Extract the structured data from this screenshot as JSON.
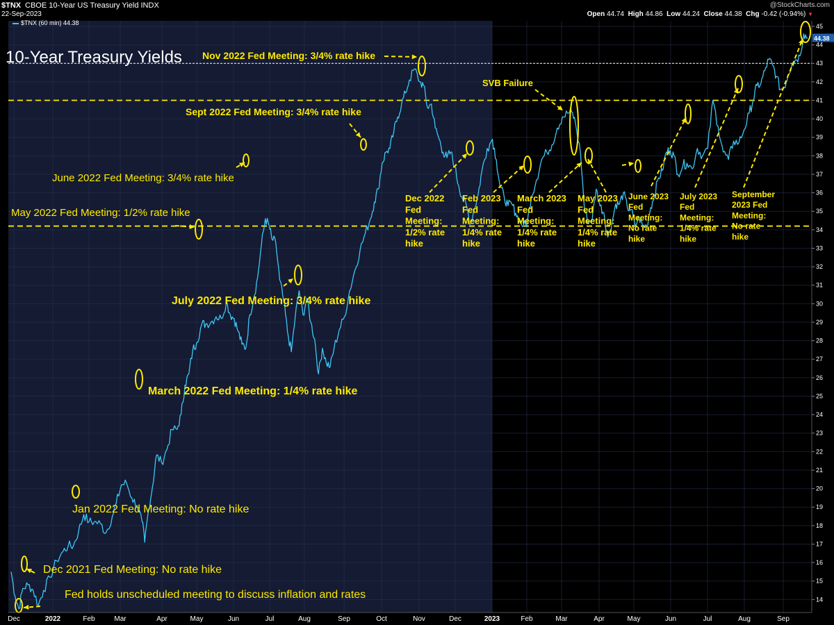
{
  "header": {
    "symbol": "$TNX",
    "description": "CBOE 10-Year US Treasury Yield INDX",
    "date": "22-Sep-2023",
    "legend": "$TNX (60 min) 44.38",
    "watermark": "@StockCharts.com",
    "open_label": "Open",
    "open": "44.74",
    "high_label": "High",
    "high": "44.86",
    "low_label": "Low",
    "low": "44.24",
    "close_label": "Close",
    "close": "44.38",
    "chg_label": "Chg",
    "chg": "-0.42 (-0.94%)",
    "chg_arrow": "▼"
  },
  "chart_data": {
    "type": "line",
    "title": "10-Year Treasury Yields",
    "symbol": "$TNX",
    "interval": "60 min",
    "ylim": [
      13.3,
      45.3
    ],
    "y_ticks": [
      14,
      15,
      16,
      17,
      18,
      19,
      20,
      21,
      22,
      23,
      24,
      25,
      26,
      27,
      28,
      29,
      30,
      31,
      32,
      33,
      34,
      35,
      36,
      37,
      38,
      39,
      40,
      41,
      42,
      43,
      44,
      45
    ],
    "x_ticks": [
      "Dec",
      "2022",
      "Feb",
      "Mar",
      "Apr",
      "May",
      "Jun",
      "Jul",
      "Aug",
      "Sep",
      "Oct",
      "Nov",
      "Dec",
      "2023",
      "Feb",
      "Mar",
      "Apr",
      "May",
      "Jun",
      "Jul",
      "Aug",
      "Sep"
    ],
    "last_value": "44.38",
    "reference_lines": [
      43,
      41,
      34.2
    ],
    "series": [
      {
        "values": [
          [
            0,
            15.5
          ],
          [
            3,
            14.2
          ],
          [
            6,
            13.5
          ],
          [
            9,
            14.6
          ],
          [
            13,
            14.8
          ],
          [
            17,
            14.5
          ],
          [
            21,
            13.7
          ],
          [
            25,
            14.5
          ],
          [
            30,
            15.2
          ],
          [
            35,
            16.1
          ],
          [
            40,
            16.6
          ],
          [
            44,
            16.9
          ],
          [
            48,
            16.9
          ],
          [
            52,
            17.7
          ],
          [
            56,
            18.6
          ],
          [
            60,
            18.2
          ],
          [
            64,
            18.2
          ],
          [
            69,
            18.1
          ],
          [
            73,
            17.6
          ],
          [
            78,
            18.5
          ],
          [
            81,
            19.2
          ],
          [
            85,
            20.2
          ],
          [
            89,
            20.3
          ],
          [
            93,
            19.5
          ],
          [
            97,
            19.1
          ],
          [
            101,
            18.2
          ],
          [
            103,
            17.1
          ],
          [
            106,
            18.9
          ],
          [
            109,
            20.1
          ],
          [
            112,
            21.8
          ],
          [
            116,
            21.4
          ],
          [
            120,
            22.1
          ],
          [
            124,
            23.2
          ],
          [
            128,
            23.2
          ],
          [
            131,
            24.0
          ],
          [
            134,
            25.6
          ],
          [
            137,
            26.2
          ],
          [
            140,
            27.5
          ],
          [
            143,
            27.9
          ],
          [
            147,
            28.9
          ],
          [
            150,
            28.9
          ],
          [
            154,
            29.0
          ],
          [
            158,
            29.3
          ],
          [
            162,
            29.2
          ],
          [
            166,
            30.1
          ],
          [
            169,
            29.4
          ],
          [
            172,
            29.2
          ],
          [
            175,
            28.5
          ],
          [
            178,
            27.8
          ],
          [
            181,
            27.6
          ],
          [
            184,
            29.4
          ],
          [
            187,
            30.3
          ],
          [
            190,
            31.4
          ],
          [
            193,
            33.2
          ],
          [
            196,
            34.6
          ],
          [
            199,
            34.2
          ],
          [
            201,
            33.5
          ],
          [
            204,
            33.3
          ],
          [
            207,
            31.3
          ],
          [
            210,
            30.2
          ],
          [
            213,
            28.5
          ],
          [
            216,
            27.4
          ],
          [
            219,
            29.3
          ],
          [
            222,
            30.7
          ],
          [
            225,
            29.4
          ],
          [
            228,
            30.3
          ],
          [
            231,
            29.0
          ],
          [
            234,
            28.1
          ],
          [
            237,
            26.2
          ],
          [
            240,
            27.6
          ],
          [
            243,
            26.8
          ],
          [
            246,
            26.6
          ],
          [
            249,
            27.6
          ],
          [
            253,
            28.6
          ],
          [
            257,
            29.3
          ],
          [
            261,
            30.7
          ],
          [
            265,
            31.8
          ],
          [
            269,
            32.9
          ],
          [
            273,
            33.8
          ],
          [
            277,
            34.6
          ],
          [
            280,
            35.5
          ],
          [
            283,
            36.2
          ],
          [
            286,
            37.6
          ],
          [
            289,
            38.2
          ],
          [
            292,
            38.4
          ],
          [
            295,
            39.3
          ],
          [
            298,
            40.1
          ],
          [
            301,
            40.8
          ],
          [
            304,
            41.4
          ],
          [
            307,
            42.1
          ],
          [
            311,
            42.7
          ],
          [
            315,
            42.0
          ],
          [
            318,
            41.8
          ],
          [
            321,
            40.6
          ],
          [
            324,
            40.8
          ],
          [
            327,
            39.5
          ],
          [
            330,
            38.9
          ],
          [
            333,
            38.2
          ],
          [
            336,
            37.9
          ],
          [
            339,
            38.2
          ],
          [
            342,
            37.4
          ],
          [
            345,
            36.4
          ],
          [
            348,
            35.7
          ],
          [
            351,
            35.3
          ],
          [
            354,
            34.3
          ],
          [
            357,
            35.1
          ],
          [
            360,
            35.9
          ],
          [
            363,
            37.2
          ],
          [
            367,
            38.4
          ],
          [
            371,
            38.9
          ],
          [
            374,
            37.8
          ],
          [
            377,
            36.3
          ],
          [
            380,
            35.8
          ],
          [
            383,
            35.3
          ],
          [
            386,
            35.4
          ],
          [
            389,
            34.9
          ],
          [
            392,
            34.5
          ],
          [
            395,
            34.2
          ],
          [
            398,
            34.4
          ],
          [
            401,
            35.8
          ],
          [
            405,
            36.7
          ],
          [
            409,
            37.8
          ],
          [
            413,
            38.2
          ],
          [
            417,
            38.6
          ],
          [
            421,
            39.5
          ],
          [
            425,
            40.1
          ],
          [
            429,
            40.3
          ],
          [
            432,
            40.4
          ],
          [
            435,
            39.8
          ],
          [
            439,
            38.1
          ],
          [
            442,
            35.1
          ],
          [
            445,
            34.4
          ],
          [
            448,
            34.6
          ],
          [
            451,
            36.2
          ],
          [
            454,
            35.3
          ],
          [
            457,
            34.9
          ],
          [
            460,
            33.6
          ],
          [
            463,
            34.3
          ],
          [
            466,
            35.4
          ],
          [
            469,
            35.4
          ],
          [
            472,
            36.0
          ],
          [
            475,
            35.2
          ],
          [
            478,
            35.1
          ],
          [
            481,
            34.2
          ],
          [
            484,
            34.7
          ],
          [
            487,
            34.2
          ],
          [
            490,
            34.2
          ],
          [
            493,
            35.2
          ],
          [
            496,
            35.9
          ],
          [
            499,
            36.8
          ],
          [
            502,
            37.2
          ],
          [
            505,
            38.2
          ],
          [
            508,
            38.3
          ],
          [
            511,
            38.0
          ],
          [
            514,
            37.0
          ],
          [
            518,
            37.5
          ],
          [
            521,
            37.6
          ],
          [
            525,
            37.3
          ],
          [
            529,
            38.4
          ],
          [
            533,
            38.0
          ],
          [
            537,
            38.4
          ],
          [
            541,
            41.0
          ],
          [
            545,
            39.6
          ],
          [
            549,
            38.2
          ],
          [
            553,
            37.8
          ],
          [
            557,
            38.8
          ],
          [
            561,
            38.7
          ],
          [
            565,
            39.4
          ],
          [
            569,
            40.3
          ],
          [
            572,
            41.0
          ],
          [
            575,
            41.8
          ],
          [
            578,
            41.9
          ],
          [
            581,
            42.6
          ],
          [
            584,
            43.2
          ],
          [
            587,
            42.9
          ],
          [
            590,
            42.3
          ],
          [
            593,
            41.6
          ],
          [
            596,
            41.7
          ],
          [
            599,
            42.4
          ],
          [
            602,
            43.0
          ],
          [
            605,
            43.2
          ],
          [
            608,
            43.4
          ],
          [
            611,
            44.6
          ],
          [
            614,
            44.4
          ]
        ]
      }
    ],
    "annotations": [
      {
        "name": "ann-unscheduled",
        "lines": [
          "Fed holds unscheduled meeting to discuss inflation and rates"
        ]
      },
      {
        "name": "ann-dec-2021",
        "lines": [
          "Dec 2021 Fed Meeting: No rate hike"
        ]
      },
      {
        "name": "ann-jan-2022",
        "lines": [
          "Jan 2022 Fed Meeting: No rate hike"
        ]
      },
      {
        "name": "ann-mar-2022",
        "lines": [
          "March 2022 Fed Meeting: 1/4% rate hike"
        ]
      },
      {
        "name": "ann-may-2022",
        "lines": [
          "May 2022 Fed Meeting: 1/2% rate hike"
        ]
      },
      {
        "name": "ann-jun-2022",
        "lines": [
          "June 2022 Fed Meeting: 3/4% rate hike"
        ]
      },
      {
        "name": "ann-jul-2022",
        "lines": [
          "July 2022 Fed Meeting: 3/4% rate hike"
        ]
      },
      {
        "name": "ann-sep-2022",
        "lines": [
          "Sept 2022 Fed Meeting: 3/4% rate hike"
        ]
      },
      {
        "name": "ann-nov-2022",
        "lines": [
          "Nov 2022 Fed Meeting: 3/4% rate hike"
        ]
      },
      {
        "name": "ann-svb",
        "lines": [
          "SVB Failure"
        ]
      },
      {
        "name": "ann-dec-2022",
        "lines": [
          "Dec 2022",
          "Fed",
          "Meeting:",
          "1/2% rate",
          "hike"
        ]
      },
      {
        "name": "ann-feb-2023",
        "lines": [
          "Feb 2023",
          "Fed",
          "Meeting:",
          "1/4% rate",
          "hike"
        ]
      },
      {
        "name": "ann-mar-2023",
        "lines": [
          "March 2023",
          "Fed",
          "Meeting:",
          "1/4% rate",
          "hike"
        ]
      },
      {
        "name": "ann-may-2023",
        "lines": [
          "May 2023",
          "Fed",
          "Meeting:",
          "1/4% rate",
          "hike"
        ]
      },
      {
        "name": "ann-jun-2023",
        "lines": [
          "June 2023",
          "Fed",
          "Meeting:",
          "No rate",
          "hike"
        ]
      },
      {
        "name": "ann-jul-2023",
        "lines": [
          "July 2023",
          "Fed",
          "Meeting:",
          "1/4% rate",
          "hike"
        ]
      },
      {
        "name": "ann-sep-2023",
        "lines": [
          "September",
          "2023 Fed",
          "Meeting:",
          "No rate",
          "hike"
        ]
      }
    ]
  },
  "colors": {
    "line": "#3fc6f5",
    "annotation": "#ffea00",
    "plot_bg_shaded": "#141b33",
    "plot_bg": "#000000",
    "grid": "#2a3350",
    "axis_text": "#ffffff",
    "last_value_box": "#1e5fae",
    "change_down": "#e83a3a"
  }
}
